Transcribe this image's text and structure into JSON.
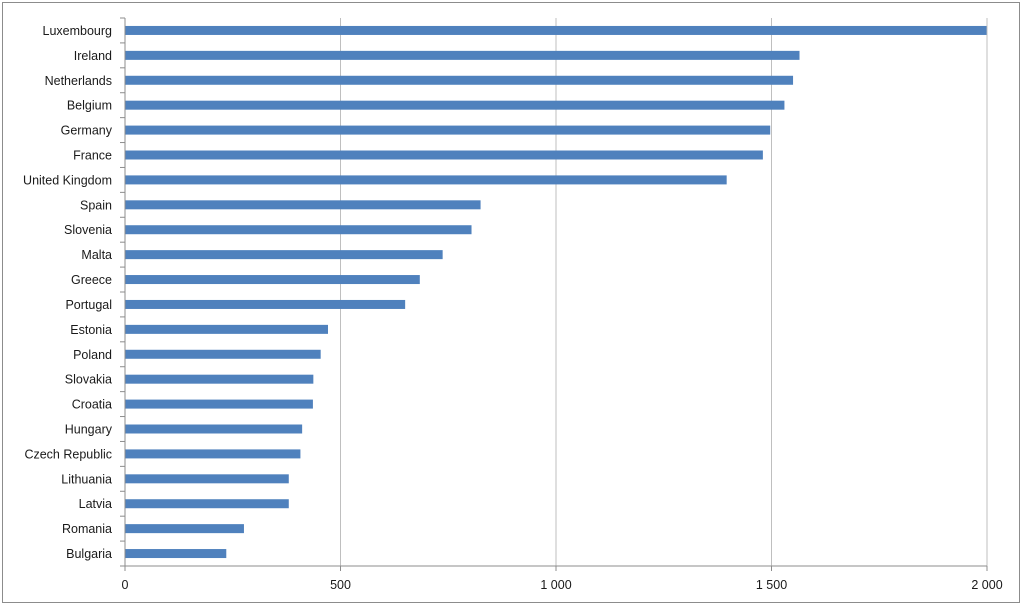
{
  "chart_data": {
    "type": "bar",
    "orientation": "horizontal",
    "title": "",
    "xlabel": "",
    "ylabel": "",
    "categories": [
      "Luxembourg",
      "Ireland",
      "Netherlands",
      "Belgium",
      "Germany",
      "France",
      "United Kingdom",
      "Spain",
      "Slovenia",
      "Malta",
      "Greece",
      "Portugal",
      "Estonia",
      "Poland",
      "Slovakia",
      "Croatia",
      "Hungary",
      "Czech Republic",
      "Lithuania",
      "Latvia",
      "Romania",
      "Bulgaria"
    ],
    "values": [
      1999,
      1565,
      1550,
      1530,
      1497,
      1480,
      1396,
      825,
      804,
      737,
      684,
      650,
      471,
      454,
      437,
      436,
      411,
      407,
      380,
      380,
      276,
      235
    ],
    "xlim": [
      0,
      2000
    ],
    "xticks": [
      0,
      500,
      1000,
      1500,
      2000
    ],
    "xtick_labels": [
      "0",
      "500",
      "1 000",
      "1 500",
      "2 000"
    ],
    "grid": "vertical",
    "legend": "none",
    "bar_color": "#4f81bd"
  }
}
